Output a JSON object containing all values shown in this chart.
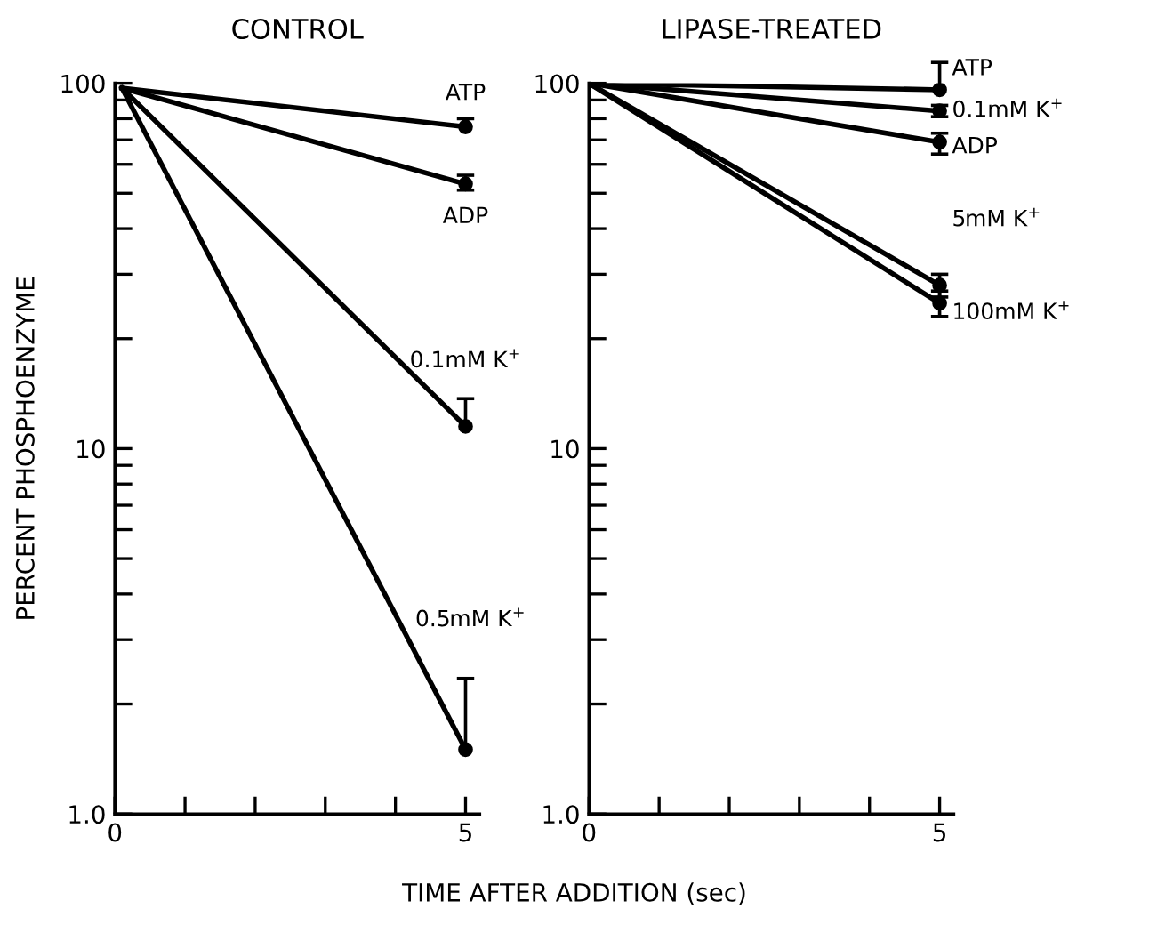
{
  "chart_data": [
    {
      "type": "line",
      "title": "CONTROL",
      "xlabel": "TIME AFTER ADDITION (sec)",
      "ylabel": "PERCENT PHOSPHOENZYME",
      "log": "y",
      "marker": "circle",
      "line_style": "solid",
      "xlim": [
        0,
        5.2
      ],
      "ylim": [
        1,
        100
      ],
      "xticks": [
        0,
        {
          "value": 1,
          "label": null
        },
        {
          "value": 2,
          "label": null
        },
        {
          "value": 3,
          "label": null
        },
        {
          "value": 4,
          "label": null
        },
        5
      ],
      "yticks": [
        {
          "value": 1,
          "label": "1.0"
        },
        {
          "value": 2,
          "label": null
        },
        {
          "value": 3,
          "label": null
        },
        {
          "value": 4,
          "label": null
        },
        {
          "value": 5,
          "label": null
        },
        {
          "value": 6,
          "label": null
        },
        {
          "value": 7,
          "label": null
        },
        {
          "value": 8,
          "label": null
        },
        {
          "value": 9,
          "label": null
        },
        10,
        {
          "value": 20,
          "label": null
        },
        {
          "value": 30,
          "label": null
        },
        {
          "value": 40,
          "label": null
        },
        {
          "value": 50,
          "label": null
        },
        {
          "value": 60,
          "label": null
        },
        {
          "value": 70,
          "label": null
        },
        {
          "value": 80,
          "label": null
        },
        {
          "value": 90,
          "label": null
        },
        100
      ],
      "series": [
        {
          "name": "ATP",
          "color": "#000000",
          "x": [
            0.1,
            5
          ],
          "values": [
            97,
            76
          ],
          "errors": [
            null,
            [
              76,
              80
            ]
          ]
        },
        {
          "name": "ADP",
          "color": "#000000",
          "x": [
            0.1,
            5
          ],
          "values": [
            97,
            53
          ],
          "errors": [
            null,
            [
              51,
              56
            ]
          ]
        },
        {
          "name": "0.1mM K$^{+}$",
          "color": "#000000",
          "x": [
            0.1,
            5
          ],
          "values": [
            97,
            11.5
          ],
          "errors": [
            null,
            [
              11.5,
              13.7
            ]
          ]
        },
        {
          "name": "0.5mM K$^{+}$",
          "color": "#000000",
          "x": [
            0.1,
            5
          ],
          "values": [
            97,
            1.5
          ],
          "errors": [
            null,
            [
              1.5,
              2.35
            ]
          ]
        }
      ]
    },
    {
      "type": "line",
      "title": "LIPASE-TREATED",
      "log": "y",
      "marker": "circle",
      "line_style": "solid",
      "xlim": [
        0,
        5.2
      ],
      "ylim": [
        1,
        100
      ],
      "xticks": [
        0,
        {
          "value": 1,
          "label": null
        },
        {
          "value": 2,
          "label": null
        },
        {
          "value": 3,
          "label": null
        },
        {
          "value": 4,
          "label": null
        },
        5
      ],
      "yticks": [
        {
          "value": 1,
          "label": "1.0"
        },
        {
          "value": 2,
          "label": null
        },
        {
          "value": 3,
          "label": null
        },
        {
          "value": 4,
          "label": null
        },
        {
          "value": 5,
          "label": null
        },
        {
          "value": 6,
          "label": null
        },
        {
          "value": 7,
          "label": null
        },
        {
          "value": 8,
          "label": null
        },
        {
          "value": 9,
          "label": null
        },
        10,
        {
          "value": 20,
          "label": null
        },
        {
          "value": 30,
          "label": null
        },
        {
          "value": 40,
          "label": null
        },
        {
          "value": 50,
          "label": null
        },
        {
          "value": 60,
          "label": null
        },
        {
          "value": 70,
          "label": null
        },
        {
          "value": 80,
          "label": null
        },
        {
          "value": 90,
          "label": null
        },
        100
      ],
      "series": [
        {
          "name": "ATP",
          "color": "#000000",
          "x": [
            0,
            5
          ],
          "values": [
            100,
            96
          ],
          "errors": [
            null,
            [
              96,
              114
            ]
          ]
        },
        {
          "name": "0.1mM K$^{+}$",
          "color": "#000000",
          "x": [
            0,
            5
          ],
          "values": [
            100,
            84
          ],
          "errors": [
            null,
            [
              81,
              87
            ]
          ]
        },
        {
          "name": "ADP",
          "color": "#000000",
          "x": [
            0,
            5
          ],
          "values": [
            100,
            69
          ],
          "errors": [
            null,
            [
              64,
              73
            ]
          ]
        },
        {
          "name": "5mM K$^{+}$",
          "color": "#000000",
          "x": [
            0,
            5
          ],
          "values": [
            100,
            28
          ],
          "errors": [
            null,
            [
              26,
              30
            ]
          ]
        },
        {
          "name": "100mM K$^{+}$",
          "color": "#000000",
          "x": [
            0,
            5
          ],
          "values": [
            100,
            25
          ],
          "errors": [
            null,
            [
              23,
              27
            ]
          ]
        }
      ]
    }
  ]
}
